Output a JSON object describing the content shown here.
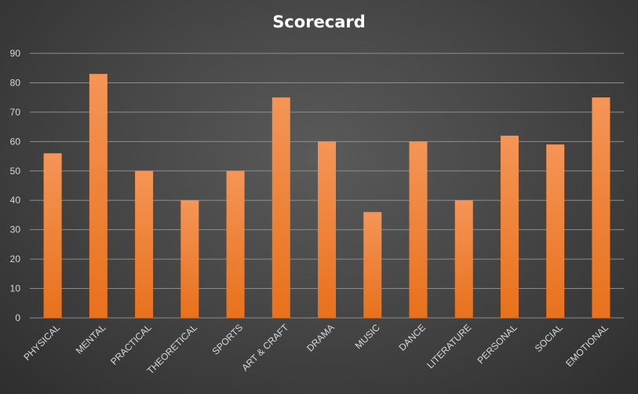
{
  "chart_data": {
    "type": "bar",
    "title": "Scorecard",
    "categories": [
      "PHYSICAL",
      "MENTAL",
      "PRACTICAL",
      "THEORETICAL",
      "SPORTS",
      "ART & CRAFT",
      "DRAMA",
      "MUSIC",
      "DANCE",
      "LITERATURE",
      "PERSONAL",
      "SOCIAL",
      "EMOTIONAL"
    ],
    "values": [
      56,
      83,
      50,
      40,
      50,
      75,
      60,
      36,
      60,
      40,
      62,
      59,
      75
    ],
    "ylim": [
      0,
      90
    ],
    "yticks": [
      0,
      10,
      20,
      30,
      40,
      50,
      60,
      70,
      80,
      90
    ],
    "xlabel": "",
    "ylabel": "",
    "grid": true,
    "legend": "none",
    "colors": {
      "bar_top": "#f49557",
      "bar_bottom": "#e8711c",
      "grid": "#8c8c8c",
      "axis_text": "#d9d9d9",
      "title": "#ffffff"
    }
  }
}
